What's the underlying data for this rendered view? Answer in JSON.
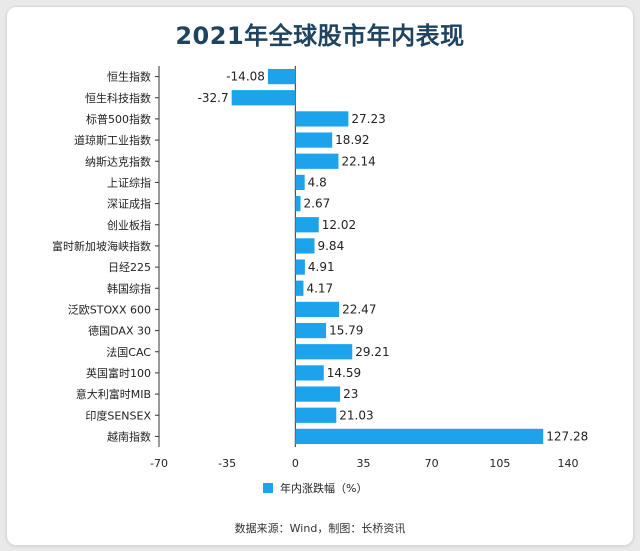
{
  "chart_data": {
    "type": "bar",
    "orientation": "horizontal",
    "title": "2021年全球股市年内表现",
    "categories": [
      "恒生指数",
      "恒生科技指数",
      "标普500指数",
      "道琼斯工业指数",
      "纳斯达克指数",
      "上证综指",
      "深证成指",
      "创业板指",
      "富时新加坡海峡指数",
      "日经225",
      "韩国综指",
      "泛欧STOXX 600",
      "德国DAX 30",
      "法国CAC",
      "英国富时100",
      "意大利富时MIB",
      "印度SENSEX",
      "越南指数"
    ],
    "series": [
      {
        "name": "年内涨跌幅（%）",
        "values": [
          -14.08,
          -32.7,
          27.23,
          18.92,
          22.14,
          4.8,
          2.67,
          12.02,
          9.84,
          4.91,
          4.17,
          22.47,
          15.79,
          29.21,
          14.59,
          23,
          21.03,
          127.28
        ]
      }
    ],
    "value_labels": [
      "-14.08",
      "-32.7",
      "27.23",
      "18.92",
      "22.14",
      "4.8",
      "2.67",
      "12.02",
      "9.84",
      "4.91",
      "4.17",
      "22.47",
      "15.79",
      "29.21",
      "14.59",
      "23",
      "21.03",
      "127.28"
    ],
    "xlim": [
      -70,
      140
    ],
    "xticks": [
      -70,
      -35,
      0,
      35,
      70,
      105,
      140
    ],
    "bar_color": "#1ca3ec",
    "legend_position": "bottom",
    "grid": false
  },
  "source_note": "数据来源：Wind，制图：长桥资讯"
}
